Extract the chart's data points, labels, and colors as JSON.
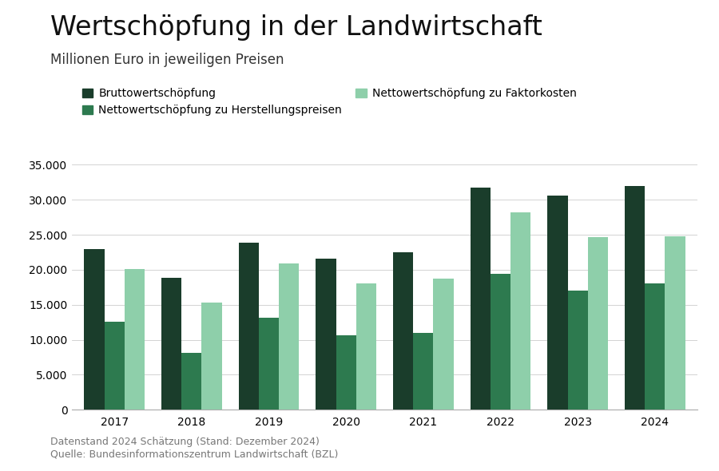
{
  "title": "Wertschöpfung in der Landwirtschaft",
  "subtitle": "Millionen Euro in jeweiligen Preisen",
  "years": [
    2017,
    2018,
    2019,
    2020,
    2021,
    2022,
    2023,
    2024
  ],
  "series": {
    "Bruttowertschöpfung": [
      23000,
      18800,
      23900,
      21600,
      22500,
      31700,
      30600,
      32000
    ],
    "Nettowertschöpfung zu Herstellungspreisen": [
      12600,
      8100,
      13100,
      10600,
      11000,
      19400,
      17000,
      18000
    ],
    "Nettowertschöpfung zu Faktorkosten": [
      20100,
      15300,
      20900,
      18000,
      18700,
      28200,
      24700,
      24800
    ]
  },
  "colors": {
    "Bruttowertschöpfung": "#1a3d2b",
    "Nettowertschöpfung zu Herstellungspreisen": "#2d7a4f",
    "Nettowertschöpfung zu Faktorkosten": "#8ecfaa"
  },
  "ylim": [
    0,
    37000
  ],
  "yticks": [
    0,
    5000,
    10000,
    15000,
    20000,
    25000,
    30000,
    35000
  ],
  "ytick_labels": [
    "0",
    "5.000",
    "10.000",
    "15.000",
    "20.000",
    "25.000",
    "30.000",
    "35.000"
  ],
  "footnote_line1": "Datenstand 2024 Schätzung (Stand: Dezember 2024)",
  "footnote_line2": "Quelle: Bundesinformationszentrum Landwirtschaft (BZL)",
  "background_color": "#ffffff",
  "grid_color": "#cccccc",
  "bar_width": 0.26,
  "title_fontsize": 24,
  "subtitle_fontsize": 12,
  "legend_fontsize": 10,
  "tick_fontsize": 10,
  "footnote_fontsize": 9
}
